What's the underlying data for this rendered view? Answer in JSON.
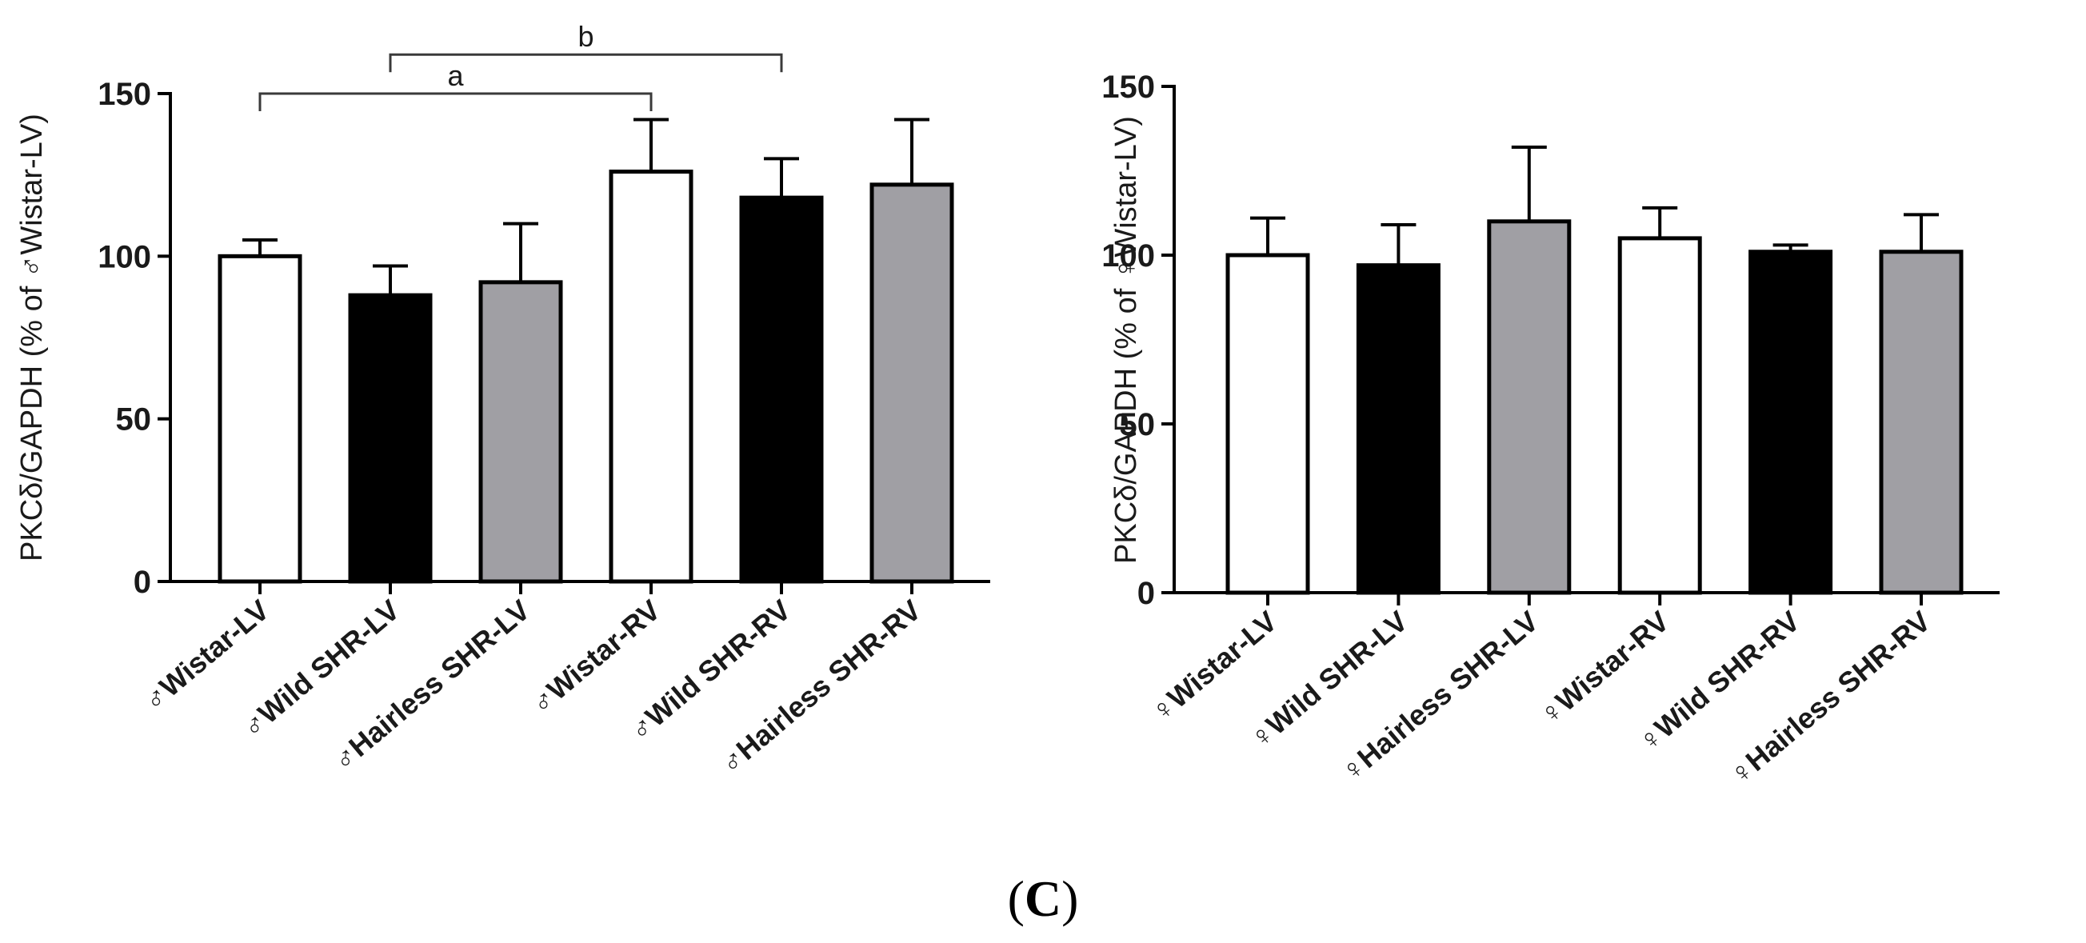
{
  "figure": {
    "panel_label_open": "(",
    "panel_label_letter": "C",
    "panel_label_close": ")"
  },
  "chart_data": [
    {
      "type": "bar",
      "panel": "male",
      "title": "",
      "xlabel": "",
      "ylabel": "PKCδ/GAPDH (% of ♂Wistar-LV)",
      "ylim": [
        0,
        150
      ],
      "yticks": [
        0,
        50,
        100,
        150
      ],
      "grid": false,
      "categories": [
        "♂Wistar-LV",
        "♂Wild SHR-LV",
        "♂Hairless SHR-LV",
        "♂Wistar-RV",
        "♂Wild SHR-RV",
        "♂Hairless SHR-RV"
      ],
      "values": [
        100,
        88,
        92,
        126,
        118,
        122
      ],
      "errors": [
        5,
        9,
        18,
        16,
        12,
        20
      ],
      "colors": [
        "#ffffff",
        "#000000",
        "#a09fa4",
        "#ffffff",
        "#000000",
        "#a09fa4"
      ],
      "significance": [
        {
          "label": "a",
          "from": 0,
          "to": 3,
          "y": 150
        },
        {
          "label": "b",
          "from": 1,
          "to": 4,
          "y": 162
        }
      ]
    },
    {
      "type": "bar",
      "panel": "female",
      "title": "",
      "xlabel": "",
      "ylabel": "PKCδ/GAPDH (% of ♀Wistar-LV)",
      "ylim": [
        0,
        150
      ],
      "yticks": [
        0,
        50,
        100,
        150
      ],
      "grid": false,
      "categories": [
        "♀Wistar-LV",
        "♀Wild SHR-LV",
        "♀Hairless SHR-LV",
        "♀Wistar-RV",
        "♀Wild SHR-RV",
        "♀Hairless SHR-RV"
      ],
      "values": [
        100,
        97,
        110,
        105,
        101,
        101
      ],
      "errors": [
        11,
        12,
        22,
        9,
        2,
        11
      ],
      "colors": [
        "#ffffff",
        "#000000",
        "#a09fa4",
        "#ffffff",
        "#000000",
        "#a09fa4"
      ],
      "significance": []
    }
  ]
}
